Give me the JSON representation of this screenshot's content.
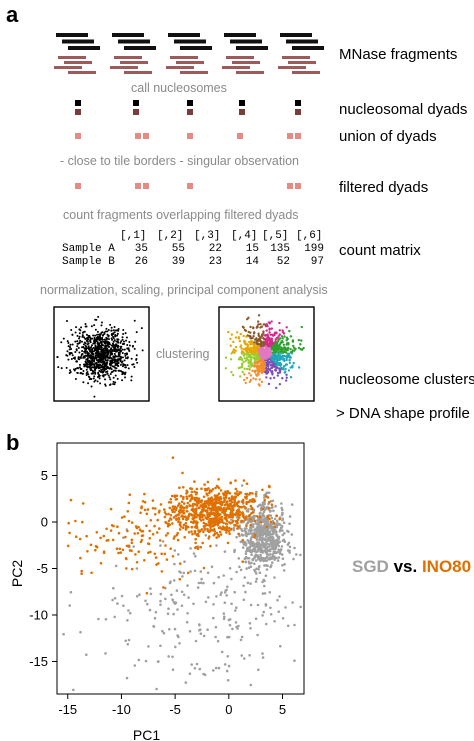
{
  "panel_a": {
    "letter": "a",
    "rows": {
      "fragments": "MNase fragments",
      "dyads": "nucleosomal dyads",
      "union": "union of dyads",
      "filtered": "filtered dyads",
      "matrix": "count matrix",
      "clusters": "nucleosome clusters",
      "shape": "> DNA shape profile"
    },
    "steps": {
      "call": "call nucleosomes",
      "filter": "- close to tile borders - singular observation",
      "count": "count fragments overlapping filtered dyads",
      "normalize": "normalization, scaling, principal component analysis",
      "clustering": "clustering"
    },
    "matrix": {
      "header": "[,1]",
      "row1": "Sample A",
      "row2": "Sample B",
      "columns": [
        "[,1]",
        "[,2]",
        "[,3]",
        "[,4]",
        "[,5]",
        "[,6]"
      ],
      "row_labels": [
        "Sample A",
        "Sample B"
      ],
      "values": [
        [
          35,
          55,
          22,
          15,
          135,
          199
        ],
        [
          26,
          39,
          23,
          14,
          52,
          97
        ]
      ]
    },
    "colors": {
      "black_fragment": "#111111",
      "red_fragment": "#9c5a5a",
      "dyad_black": "#000000",
      "dyad_red": "#7a3b3b",
      "dyad_pink": "#e88a84"
    },
    "cluster_colors": [
      "#e6a800",
      "#8b5a2b",
      "#d62a8a",
      "#2ca02c",
      "#1fa7b8",
      "#7b4fb3",
      "#f28e2b",
      "#9acd32",
      "#e377c2",
      "#4b4b4b"
    ]
  },
  "panel_b": {
    "letter": "b",
    "legend": {
      "sgd": "SGD",
      "vs": "vs.",
      "ino80": "INO80"
    }
  },
  "chart_data": {
    "type": "scatter",
    "xlabel": "PC1",
    "ylabel": "PC2",
    "xlim": [
      -16,
      7
    ],
    "ylim": [
      -18.5,
      8.5
    ],
    "xticks": [
      -15,
      -10,
      -5,
      0,
      5
    ],
    "yticks": [
      5,
      0,
      -5,
      -10,
      -15
    ],
    "series": [
      {
        "name": "SGD",
        "color": "#a0a0a0",
        "clusters": [
          {
            "center": [
              3.2,
              -1.6
            ],
            "spread": [
              1.1,
              1.8
            ],
            "n": 650
          },
          {
            "center": [
              -2.0,
              -9.5
            ],
            "spread": [
              5.5,
              4.2
            ],
            "n": 260
          }
        ]
      },
      {
        "name": "INO80",
        "color": "#e07000",
        "clusters": [
          {
            "center": [
              -1.5,
              1.2
            ],
            "spread": [
              2.1,
              1.3
            ],
            "n": 700
          },
          {
            "center": [
              -8.0,
              -1.5
            ],
            "spread": [
              3.2,
              2.2
            ],
            "n": 160
          }
        ]
      }
    ]
  }
}
